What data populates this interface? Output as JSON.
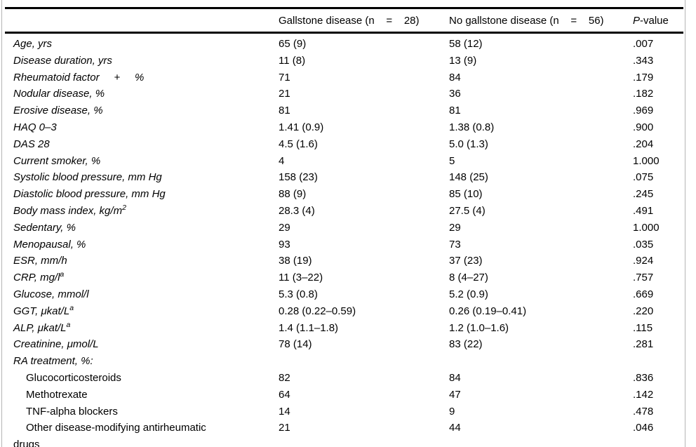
{
  "table": {
    "header": {
      "col_label": "",
      "col_gallstone": "Gallstone disease (n    =    28)",
      "col_no_gallstone": "No gallstone disease (n    =    56)",
      "col_p_italic": "P",
      "col_p_rest": "-value"
    },
    "rows": [
      {
        "label": "Age, yrs",
        "italic": true,
        "indent": false,
        "c1": "65 (9)",
        "c2": "58 (12)",
        "p": ".007"
      },
      {
        "label": "Disease duration, yrs",
        "italic": true,
        "indent": false,
        "c1": "11 (8)",
        "c2": "13 (9)",
        "p": ".343"
      },
      {
        "label": "Rheumatoid factor     +     %",
        "italic": true,
        "indent": false,
        "c1": "71",
        "c2": "84",
        "p": ".179"
      },
      {
        "label": "Nodular disease, %",
        "italic": true,
        "indent": false,
        "c1": "21",
        "c2": "36",
        "p": ".182"
      },
      {
        "label": "Erosive disease, %",
        "italic": true,
        "indent": false,
        "c1": "81",
        "c2": "81",
        "p": ".969"
      },
      {
        "label": "HAQ 0–3",
        "italic": true,
        "indent": false,
        "c1": "1.41 (0.9)",
        "c2": "1.38 (0.8)",
        "p": ".900"
      },
      {
        "label": "DAS 28",
        "italic": true,
        "indent": false,
        "c1": "4.5 (1.6)",
        "c2": "5.0 (1.3)",
        "p": ".204"
      },
      {
        "label": "Current smoker, %",
        "italic": true,
        "indent": false,
        "c1": "4",
        "c2": "5",
        "p": "1.000"
      },
      {
        "label": "Systolic blood pressure, mm Hg",
        "italic": true,
        "indent": false,
        "c1": "158 (23)",
        "c2": "148 (25)",
        "p": ".075"
      },
      {
        "label": "Diastolic blood pressure, mm Hg",
        "italic": true,
        "indent": false,
        "c1": "88 (9)",
        "c2": "85 (10)",
        "p": ".245"
      },
      {
        "label": "Body mass index, kg/m",
        "sup": "2",
        "italic": true,
        "indent": false,
        "c1": "28.3 (4)",
        "c2": "27.5 (4)",
        "p": ".491"
      },
      {
        "label": "Sedentary, %",
        "italic": true,
        "indent": false,
        "c1": "29",
        "c2": "29",
        "p": "1.000"
      },
      {
        "label": "Menopausal, %",
        "italic": true,
        "indent": false,
        "c1": "93",
        "c2": "73",
        "p": ".035"
      },
      {
        "label": "ESR, mm/h",
        "italic": true,
        "indent": false,
        "c1": "38 (19)",
        "c2": "37 (23)",
        "p": ".924"
      },
      {
        "label": "CRP, mg/l",
        "sup": "a",
        "italic": true,
        "indent": false,
        "c1": "11 (3–22)",
        "c2": "8 (4–27)",
        "p": ".757"
      },
      {
        "label": "Glucose, mmol/l",
        "italic": true,
        "indent": false,
        "c1": "5.3 (0.8)",
        "c2": "5.2 (0.9)",
        "p": ".669"
      },
      {
        "label": "GGT, μkat/L",
        "sup": "a",
        "italic": true,
        "indent": false,
        "c1": "0.28 (0.22–0.59)",
        "c2": "0.26 (0.19–0.41)",
        "p": ".220"
      },
      {
        "label": "ALP, μkat/L",
        "sup": "a",
        "italic": true,
        "indent": false,
        "c1": "1.4 (1.1–1.8)",
        "c2": "1.2 (1.0–1.6)",
        "p": ".115"
      },
      {
        "label": "Creatinine, μmol/L",
        "italic": true,
        "indent": false,
        "c1": "78 (14)",
        "c2": "83 (22)",
        "p": ".281"
      },
      {
        "label": "RA treatment, %:",
        "italic": true,
        "indent": false,
        "c1": "",
        "c2": "",
        "p": ""
      },
      {
        "label": "Glucocorticosteroids",
        "italic": false,
        "indent": true,
        "c1": "82",
        "c2": "84",
        "p": ".836"
      },
      {
        "label": "Methotrexate",
        "italic": false,
        "indent": true,
        "c1": "64",
        "c2": "47",
        "p": ".142"
      },
      {
        "label": "TNF-alpha blockers",
        "italic": false,
        "indent": true,
        "c1": "14",
        "c2": "9",
        "p": ".478"
      },
      {
        "label": "Other disease-modifying antirheumatic",
        "label2": "drugs",
        "italic": false,
        "indent": true,
        "c1": "21",
        "c2": "44",
        "p": ".046"
      }
    ]
  },
  "colors": {
    "rule": "#000000",
    "frame": "#b4b4b4",
    "text": "#000000",
    "background": "#ffffff"
  }
}
